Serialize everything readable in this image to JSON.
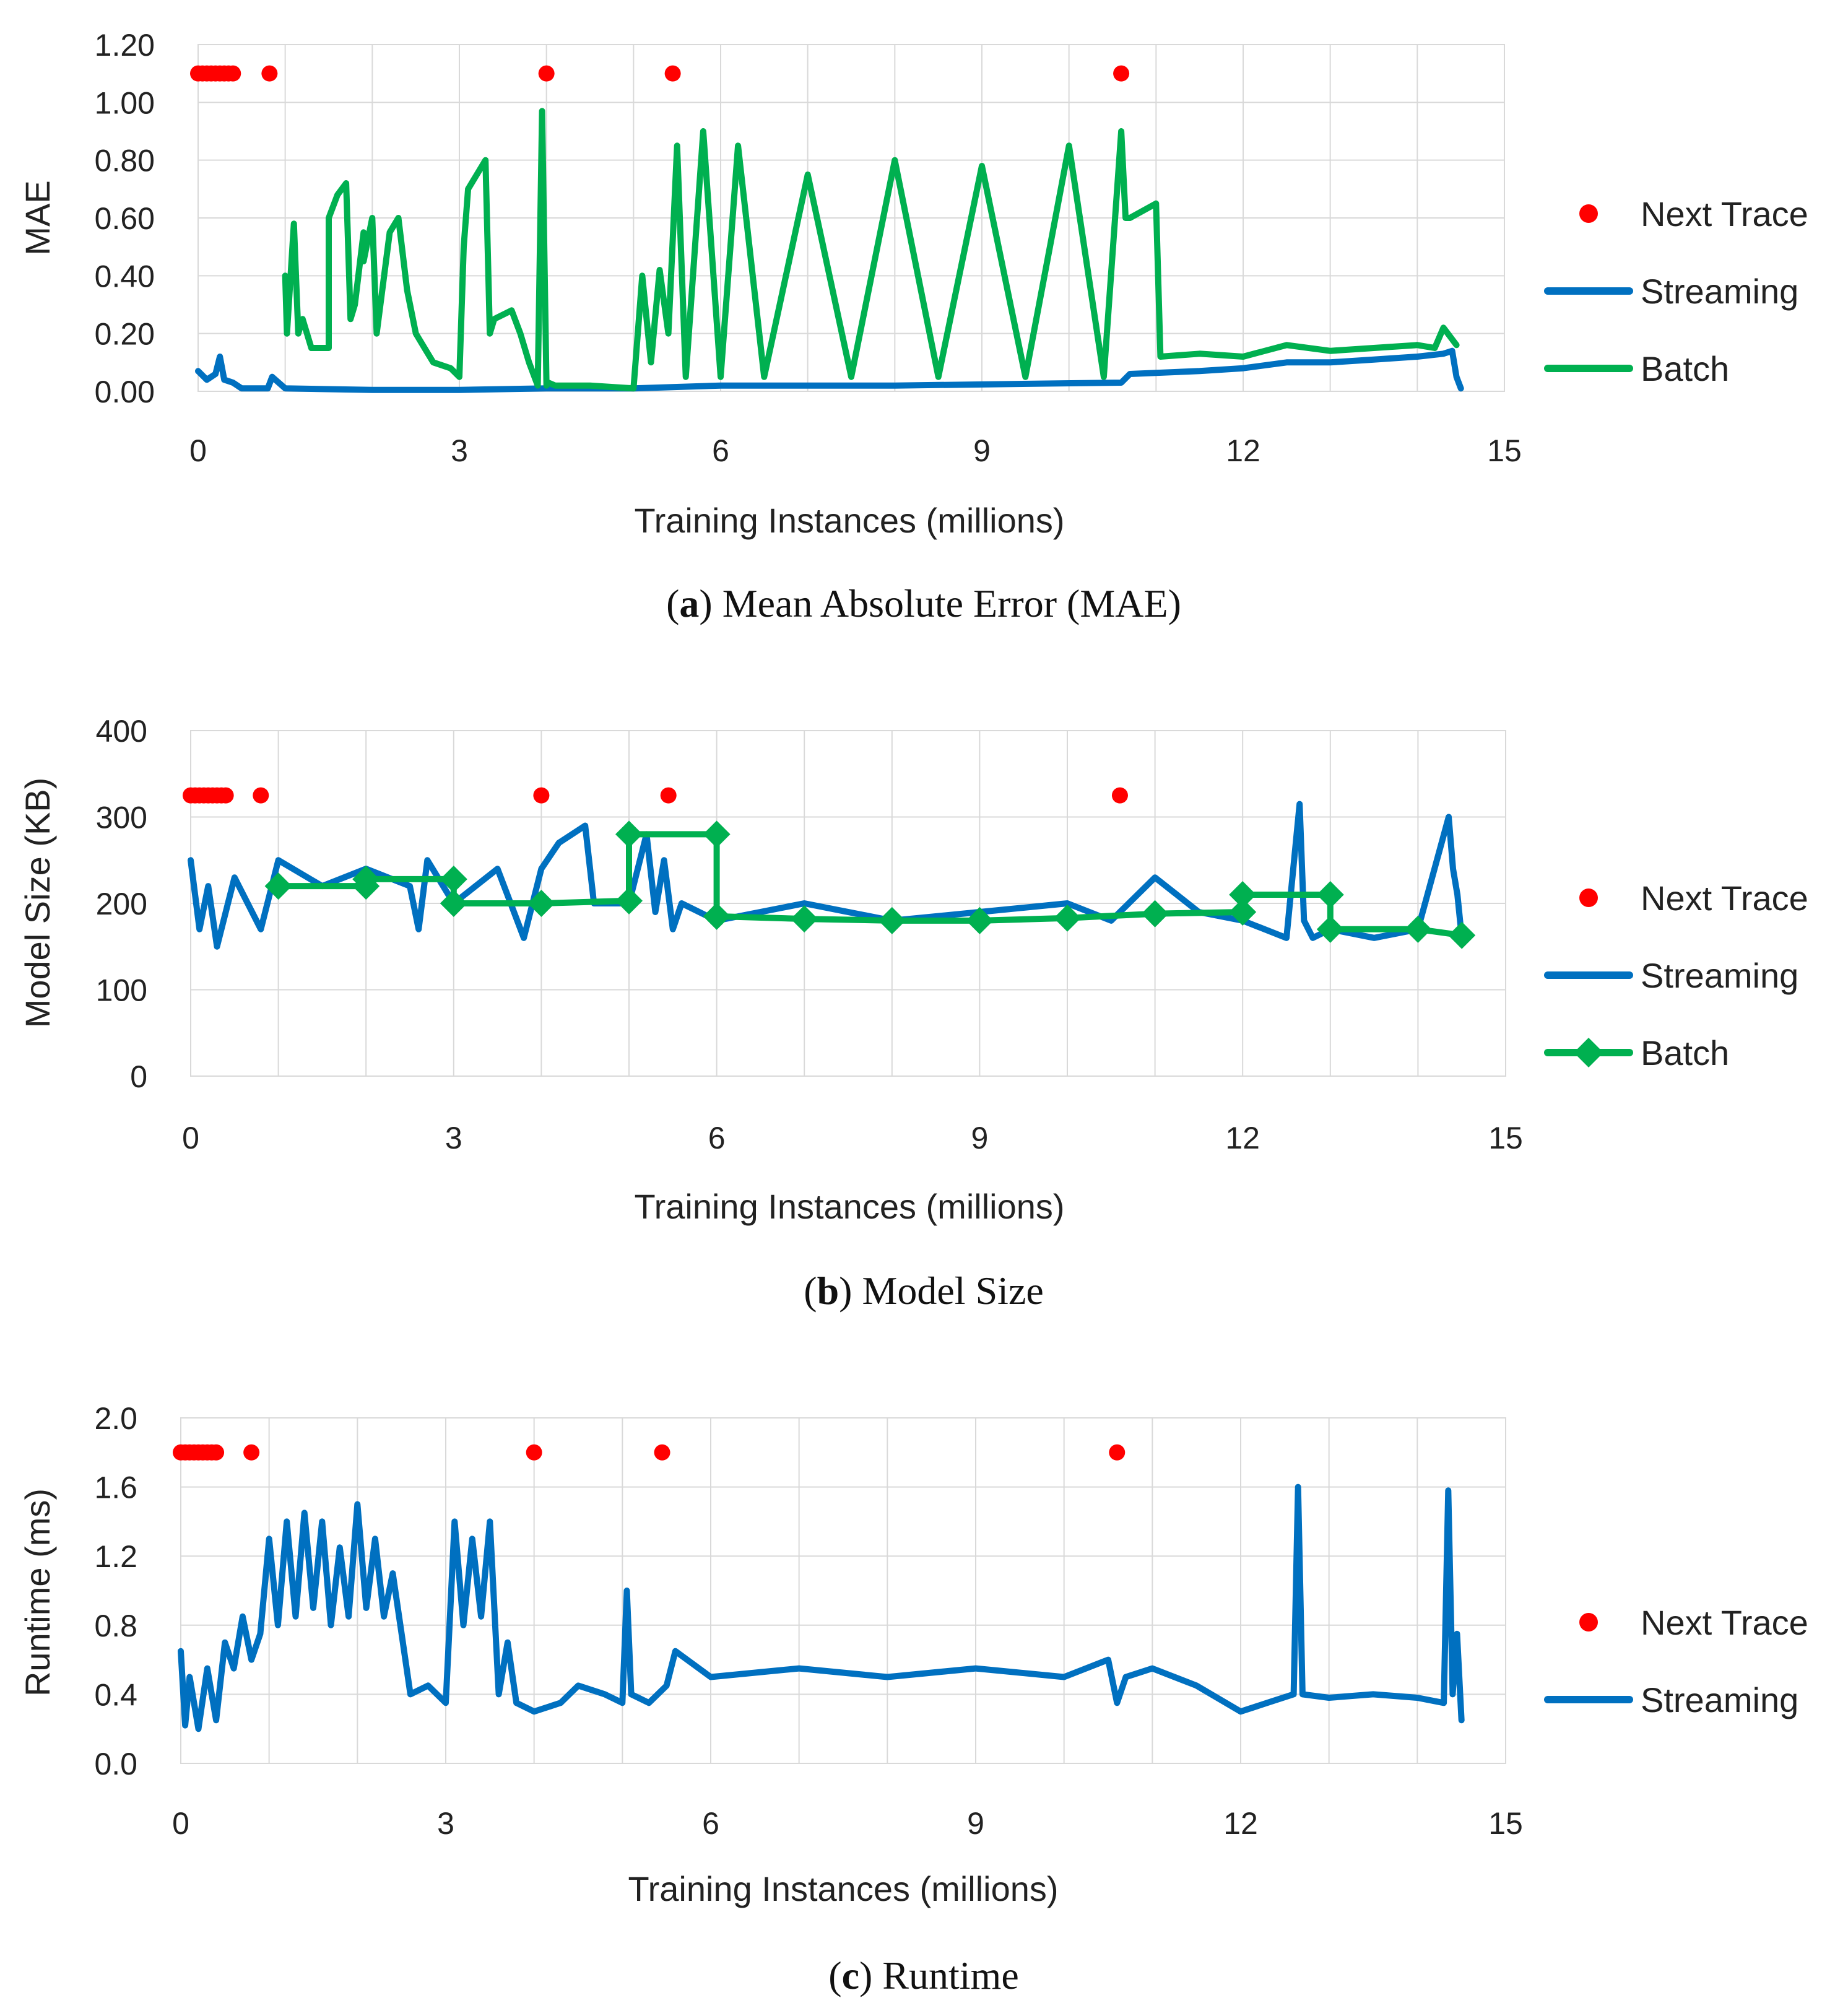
{
  "chart_data": [
    {
      "type": "line",
      "panel": "a",
      "caption_label": "a",
      "caption_text": "Mean Absolute Error (MAE)",
      "xlabel": "Training Instances (millions)",
      "ylabel": "MAE",
      "xlim": [
        0,
        15
      ],
      "ylim": [
        0,
        1.2
      ],
      "xticks": [
        "0",
        "3",
        "6",
        "9",
        "12",
        "15"
      ],
      "yticks": [
        "0.00",
        "0.20",
        "0.40",
        "0.60",
        "0.80",
        "1.00",
        "1.20"
      ],
      "grid": true,
      "legend_position": "right",
      "series": [
        {
          "name": "Next Trace",
          "kind": "points",
          "color": "#ff0000",
          "x": [
            0.0,
            0.05,
            0.1,
            0.15,
            0.2,
            0.25,
            0.3,
            0.35,
            0.4,
            0.82,
            4.0,
            5.45,
            10.6
          ],
          "y": [
            1.1,
            1.1,
            1.1,
            1.1,
            1.1,
            1.1,
            1.1,
            1.1,
            1.1,
            1.1,
            1.1,
            1.1,
            1.1
          ]
        },
        {
          "name": "Streaming",
          "kind": "line",
          "color": "#0070c0",
          "x": [
            0.0,
            0.1,
            0.2,
            0.25,
            0.3,
            0.4,
            0.5,
            0.8,
            0.85,
            1.0,
            2.0,
            3.0,
            4.0,
            5.0,
            6.0,
            8.0,
            10.6,
            10.7,
            11.5,
            12.0,
            12.5,
            13.0,
            13.5,
            14.0,
            14.3,
            14.4,
            14.45,
            14.5
          ],
          "y": [
            0.07,
            0.04,
            0.06,
            0.12,
            0.04,
            0.03,
            0.01,
            0.01,
            0.05,
            0.01,
            0.005,
            0.005,
            0.01,
            0.01,
            0.02,
            0.02,
            0.03,
            0.06,
            0.07,
            0.08,
            0.1,
            0.1,
            0.11,
            0.12,
            0.13,
            0.14,
            0.05,
            0.01
          ]
        },
        {
          "name": "Batch",
          "kind": "line",
          "color": "#00b050",
          "x": [
            1.0,
            1.02,
            1.1,
            1.15,
            1.2,
            1.3,
            1.5,
            1.5,
            1.6,
            1.7,
            1.75,
            1.8,
            1.9,
            1.9,
            2.0,
            2.05,
            2.2,
            2.3,
            2.4,
            2.5,
            2.6,
            2.7,
            2.9,
            3.0,
            3.05,
            3.1,
            3.3,
            3.35,
            3.4,
            3.6,
            3.7,
            3.8,
            3.9,
            3.95,
            4.0,
            4.02,
            4.1,
            4.5,
            5.0,
            5.1,
            5.2,
            5.3,
            5.4,
            5.5,
            5.6,
            5.8,
            6.0,
            6.2,
            6.5,
            7.0,
            7.5,
            8.0,
            8.5,
            9.0,
            9.5,
            10.0,
            10.4,
            10.6,
            10.65,
            10.7,
            11.0,
            11.05,
            11.5,
            12.0,
            12.5,
            13.0,
            13.5,
            14.0,
            14.2,
            14.3,
            14.45
          ],
          "y": [
            0.4,
            0.2,
            0.58,
            0.2,
            0.25,
            0.15,
            0.15,
            0.6,
            0.68,
            0.72,
            0.25,
            0.3,
            0.55,
            0.45,
            0.6,
            0.2,
            0.55,
            0.6,
            0.35,
            0.2,
            0.15,
            0.1,
            0.08,
            0.05,
            0.5,
            0.7,
            0.8,
            0.2,
            0.25,
            0.28,
            0.2,
            0.1,
            0.02,
            0.97,
            0.02,
            0.03,
            0.02,
            0.02,
            0.01,
            0.4,
            0.1,
            0.42,
            0.2,
            0.85,
            0.05,
            0.9,
            0.05,
            0.85,
            0.05,
            0.75,
            0.05,
            0.8,
            0.05,
            0.78,
            0.05,
            0.85,
            0.05,
            0.9,
            0.6,
            0.6,
            0.65,
            0.12,
            0.13,
            0.12,
            0.16,
            0.14,
            0.15,
            0.16,
            0.15,
            0.22,
            0.16
          ]
        }
      ]
    },
    {
      "type": "line",
      "panel": "b",
      "caption_label": "b",
      "caption_text": "Model Size",
      "xlabel": "Training Instances (millions)",
      "ylabel": "Model Size (KB)",
      "xlim": [
        0,
        15
      ],
      "ylim": [
        0,
        400
      ],
      "xticks": [
        "0",
        "3",
        "6",
        "9",
        "12",
        "15"
      ],
      "yticks": [
        "0",
        "100",
        "200",
        "300",
        "400"
      ],
      "grid": true,
      "legend_position": "right",
      "series": [
        {
          "name": "Next Trace",
          "kind": "points",
          "color": "#ff0000",
          "x": [
            0.0,
            0.05,
            0.1,
            0.15,
            0.2,
            0.25,
            0.3,
            0.35,
            0.4,
            0.8,
            4.0,
            5.45,
            10.6
          ],
          "y": [
            325,
            325,
            325,
            325,
            325,
            325,
            325,
            325,
            325,
            325,
            325,
            325,
            325
          ]
        },
        {
          "name": "Streaming",
          "kind": "line",
          "color": "#0070c0",
          "x": [
            0.0,
            0.1,
            0.2,
            0.3,
            0.5,
            0.8,
            1.0,
            1.5,
            2.0,
            2.5,
            2.6,
            2.7,
            3.0,
            3.5,
            3.8,
            4.0,
            4.2,
            4.5,
            4.6,
            5.0,
            5.2,
            5.3,
            5.4,
            5.5,
            5.6,
            6.0,
            7.0,
            8.0,
            9.0,
            10.0,
            10.5,
            11.0,
            11.5,
            12.0,
            12.5,
            12.65,
            12.7,
            12.8,
            13.0,
            13.5,
            14.0,
            14.35,
            14.4,
            14.45,
            14.5
          ],
          "y": [
            250,
            170,
            220,
            150,
            230,
            170,
            250,
            220,
            240,
            220,
            170,
            250,
            200,
            240,
            160,
            240,
            270,
            290,
            200,
            200,
            280,
            190,
            250,
            170,
            200,
            180,
            200,
            180,
            190,
            200,
            180,
            230,
            190,
            180,
            160,
            315,
            180,
            160,
            170,
            160,
            170,
            300,
            240,
            210,
            160
          ]
        },
        {
          "name": "Batch",
          "kind": "markers-line",
          "color": "#00b050",
          "x": [
            1,
            2,
            2,
            3,
            3,
            4,
            5,
            5,
            6,
            6,
            7,
            8,
            9,
            10,
            11,
            12,
            12,
            13,
            13,
            14,
            14.5
          ],
          "y": [
            220,
            220,
            228,
            228,
            200,
            200,
            203,
            280,
            280,
            185,
            182,
            180,
            180,
            183,
            188,
            190,
            210,
            210,
            170,
            170,
            163
          ]
        }
      ]
    },
    {
      "type": "line",
      "panel": "c",
      "caption_label": "c",
      "caption_text": "Runtime",
      "xlabel": "Training Instances (millions)",
      "ylabel": "Runtime (ms)",
      "xlim": [
        0,
        15
      ],
      "ylim": [
        0,
        2.0
      ],
      "xticks": [
        "0",
        "3",
        "6",
        "9",
        "12",
        "15"
      ],
      "yticks": [
        "0.0",
        "0.4",
        "0.8",
        "1.2",
        "1.6",
        "2.0"
      ],
      "grid": true,
      "legend_position": "right",
      "series": [
        {
          "name": "Next Trace",
          "kind": "points",
          "color": "#ff0000",
          "x": [
            0.0,
            0.05,
            0.1,
            0.15,
            0.2,
            0.25,
            0.3,
            0.35,
            0.4,
            0.8,
            4.0,
            5.45,
            10.6
          ],
          "y": [
            1.8,
            1.8,
            1.8,
            1.8,
            1.8,
            1.8,
            1.8,
            1.8,
            1.8,
            1.8,
            1.8,
            1.8,
            1.8
          ]
        },
        {
          "name": "Streaming",
          "kind": "line",
          "color": "#0070c0",
          "x": [
            0.0,
            0.05,
            0.1,
            0.2,
            0.3,
            0.4,
            0.5,
            0.6,
            0.7,
            0.8,
            0.9,
            1.0,
            1.1,
            1.2,
            1.3,
            1.4,
            1.5,
            1.6,
            1.7,
            1.8,
            1.9,
            2.0,
            2.1,
            2.2,
            2.3,
            2.4,
            2.5,
            2.6,
            2.8,
            3.0,
            3.1,
            3.2,
            3.3,
            3.4,
            3.5,
            3.6,
            3.7,
            3.8,
            4.0,
            4.3,
            4.5,
            4.8,
            5.0,
            5.05,
            5.1,
            5.3,
            5.5,
            5.6,
            6.0,
            7.0,
            8.0,
            9.0,
            10.0,
            10.5,
            10.6,
            10.7,
            11.0,
            11.5,
            12.0,
            12.3,
            12.6,
            12.65,
            12.7,
            13.0,
            13.5,
            14.0,
            14.3,
            14.35,
            14.4,
            14.45,
            14.5
          ],
          "y": [
            0.65,
            0.22,
            0.5,
            0.2,
            0.55,
            0.25,
            0.7,
            0.55,
            0.85,
            0.6,
            0.75,
            1.3,
            0.8,
            1.4,
            0.85,
            1.45,
            0.9,
            1.4,
            0.8,
            1.25,
            0.85,
            1.5,
            0.9,
            1.3,
            0.85,
            1.1,
            0.75,
            0.4,
            0.45,
            0.35,
            1.4,
            0.8,
            1.3,
            0.85,
            1.4,
            0.4,
            0.7,
            0.35,
            0.3,
            0.35,
            0.45,
            0.4,
            0.35,
            1.0,
            0.4,
            0.35,
            0.45,
            0.65,
            0.5,
            0.55,
            0.5,
            0.55,
            0.5,
            0.6,
            0.35,
            0.5,
            0.55,
            0.45,
            0.3,
            0.35,
            0.4,
            1.6,
            0.4,
            0.38,
            0.4,
            0.38,
            0.35,
            1.58,
            0.4,
            0.75,
            0.25
          ]
        }
      ]
    }
  ]
}
